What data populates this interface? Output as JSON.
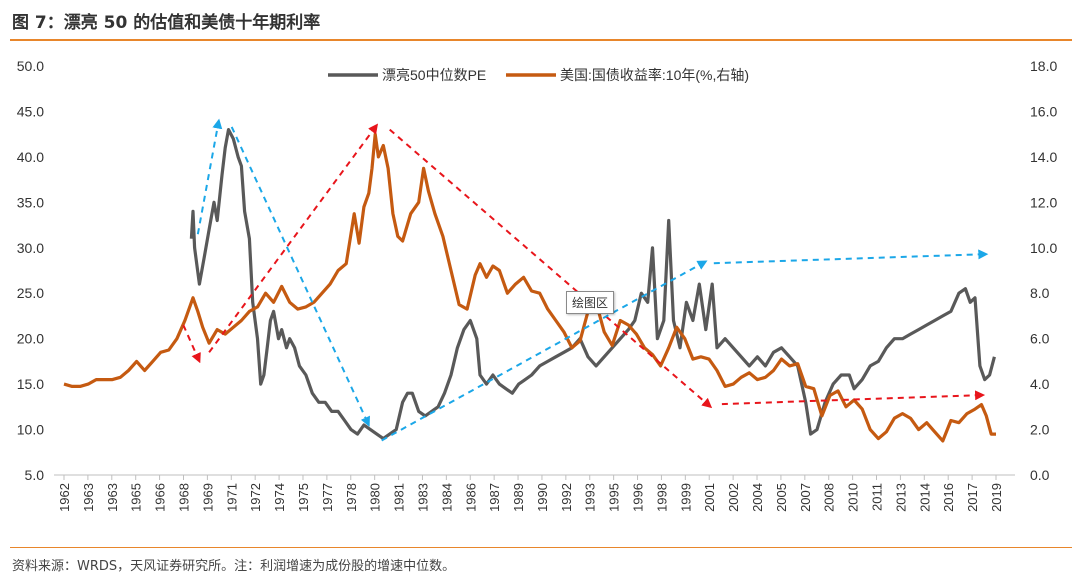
{
  "figure": {
    "title": "图 7：漂亮 50 的估值和美债十年期利率",
    "source_note": "资料来源：WRDS，天风证券研究所。注：利润增速为成份股的增速中位数。",
    "tooltip": "绘图区"
  },
  "colors": {
    "pe_line": "#595959",
    "yield_line": "#c55a11",
    "arrow_red": "#e8151b",
    "arrow_blue": "#1ba7e8",
    "rule": "#e8862b"
  },
  "chart_data": {
    "type": "line",
    "x_ticks": [
      "1962",
      "1963",
      "1963",
      "1965",
      "1966",
      "1968",
      "1969",
      "1971",
      "1972",
      "1974",
      "1975",
      "1977",
      "1978",
      "1980",
      "1981",
      "1983",
      "1984",
      "1986",
      "1987",
      "1989",
      "1990",
      "1992",
      "1993",
      "1995",
      "1996",
      "1998",
      "1999",
      "2001",
      "2002",
      "2004",
      "2005",
      "2007",
      "2008",
      "2010",
      "2011",
      "2013",
      "2014",
      "2016",
      "2017",
      "2019"
    ],
    "xlim": [
      1962,
      2019.8
    ],
    "y_left": {
      "range": [
        5,
        50
      ],
      "ticks": [
        "5.0",
        "10.0",
        "15.0",
        "20.0",
        "25.0",
        "30.0",
        "35.0",
        "40.0",
        "45.0",
        "50.0"
      ]
    },
    "y_right": {
      "range": [
        0,
        18
      ],
      "ticks": [
        "0.0",
        "2.0",
        "4.0",
        "6.0",
        "8.0",
        "10.0",
        "12.0",
        "14.0",
        "16.0",
        "18.0"
      ]
    },
    "legend": {
      "position": "top-center"
    },
    "series": [
      {
        "name": "漂亮50中位数PE",
        "axis": "left",
        "points": [
          [
            1969.9,
            31
          ],
          [
            1970.0,
            34
          ],
          [
            1970.1,
            30
          ],
          [
            1970.4,
            26
          ],
          [
            1970.7,
            29
          ],
          [
            1971.0,
            32
          ],
          [
            1971.3,
            35
          ],
          [
            1971.5,
            33
          ],
          [
            1971.8,
            38
          ],
          [
            1972.0,
            41
          ],
          [
            1972.2,
            43
          ],
          [
            1972.5,
            42
          ],
          [
            1972.8,
            40
          ],
          [
            1973.0,
            39
          ],
          [
            1973.2,
            34
          ],
          [
            1973.5,
            31
          ],
          [
            1973.7,
            24
          ],
          [
            1974.0,
            20
          ],
          [
            1974.2,
            15
          ],
          [
            1974.4,
            16
          ],
          [
            1974.6,
            19
          ],
          [
            1974.8,
            22
          ],
          [
            1975.0,
            23
          ],
          [
            1975.3,
            20
          ],
          [
            1975.5,
            21
          ],
          [
            1975.8,
            19
          ],
          [
            1976.0,
            20
          ],
          [
            1976.3,
            19
          ],
          [
            1976.6,
            17
          ],
          [
            1977.0,
            16
          ],
          [
            1977.4,
            14
          ],
          [
            1977.8,
            13
          ],
          [
            1978.2,
            13
          ],
          [
            1978.6,
            12
          ],
          [
            1979.0,
            12
          ],
          [
            1979.4,
            11
          ],
          [
            1979.8,
            10
          ],
          [
            1980.2,
            9.5
          ],
          [
            1980.6,
            10.5
          ],
          [
            1981.0,
            10
          ],
          [
            1981.4,
            9.5
          ],
          [
            1981.8,
            9
          ],
          [
            1982.2,
            9.5
          ],
          [
            1982.6,
            10
          ],
          [
            1983.0,
            13
          ],
          [
            1983.3,
            14
          ],
          [
            1983.6,
            14
          ],
          [
            1984.0,
            12
          ],
          [
            1984.4,
            11.5
          ],
          [
            1984.8,
            12
          ],
          [
            1985.2,
            12.5
          ],
          [
            1985.6,
            14
          ],
          [
            1986.0,
            16
          ],
          [
            1986.4,
            19
          ],
          [
            1986.8,
            21
          ],
          [
            1987.2,
            22
          ],
          [
            1987.6,
            20
          ],
          [
            1987.8,
            16
          ],
          [
            1988.2,
            15
          ],
          [
            1988.6,
            16
          ],
          [
            1989.0,
            15
          ],
          [
            1989.4,
            14.5
          ],
          [
            1989.8,
            14
          ],
          [
            1990.2,
            15
          ],
          [
            1990.6,
            15.5
          ],
          [
            1991.0,
            16
          ],
          [
            1991.5,
            17
          ],
          [
            1992.0,
            17.5
          ],
          [
            1992.5,
            18
          ],
          [
            1993.0,
            18.5
          ],
          [
            1993.5,
            19
          ],
          [
            1994.0,
            20
          ],
          [
            1994.5,
            18
          ],
          [
            1995.0,
            17
          ],
          [
            1995.5,
            18
          ],
          [
            1996.0,
            19
          ],
          [
            1996.5,
            20
          ],
          [
            1997.0,
            21
          ],
          [
            1997.4,
            22
          ],
          [
            1997.8,
            25
          ],
          [
            1998.2,
            24
          ],
          [
            1998.5,
            30
          ],
          [
            1998.8,
            20
          ],
          [
            1999.2,
            22
          ],
          [
            1999.5,
            33
          ],
          [
            1999.8,
            22
          ],
          [
            2000.2,
            19
          ],
          [
            2000.6,
            24
          ],
          [
            2001.0,
            22
          ],
          [
            2001.4,
            26
          ],
          [
            2001.8,
            21
          ],
          [
            2002.2,
            26
          ],
          [
            2002.5,
            19
          ],
          [
            2003.0,
            20
          ],
          [
            2003.5,
            19
          ],
          [
            2004.0,
            18
          ],
          [
            2004.5,
            17
          ],
          [
            2005.0,
            18
          ],
          [
            2005.5,
            17
          ],
          [
            2006.0,
            18.5
          ],
          [
            2006.5,
            19
          ],
          [
            2007.0,
            18
          ],
          [
            2007.5,
            17
          ],
          [
            2008.0,
            13
          ],
          [
            2008.3,
            9.5
          ],
          [
            2008.7,
            10
          ],
          [
            2009.2,
            13
          ],
          [
            2009.7,
            15
          ],
          [
            2010.2,
            16
          ],
          [
            2010.7,
            16
          ],
          [
            2011.0,
            14.5
          ],
          [
            2011.5,
            15.5
          ],
          [
            2012.0,
            17
          ],
          [
            2012.5,
            17.5
          ],
          [
            2013.0,
            19
          ],
          [
            2013.5,
            20
          ],
          [
            2014.0,
            20
          ],
          [
            2014.5,
            20.5
          ],
          [
            2015.0,
            21
          ],
          [
            2015.5,
            21.5
          ],
          [
            2016.0,
            22
          ],
          [
            2016.5,
            22.5
          ],
          [
            2017.0,
            23
          ],
          [
            2017.5,
            25
          ],
          [
            2017.9,
            25.5
          ],
          [
            2018.2,
            24
          ],
          [
            2018.5,
            24.5
          ],
          [
            2018.8,
            17
          ],
          [
            2019.1,
            15.5
          ],
          [
            2019.4,
            16
          ],
          [
            2019.7,
            18
          ]
        ]
      },
      {
        "name": "美国:国债收益率:10年(%,右轴)",
        "axis": "right",
        "points": [
          [
            1962.0,
            4.0
          ],
          [
            1962.5,
            3.9
          ],
          [
            1963.0,
            3.9
          ],
          [
            1963.5,
            4.0
          ],
          [
            1964.0,
            4.2
          ],
          [
            1964.5,
            4.2
          ],
          [
            1965.0,
            4.2
          ],
          [
            1965.5,
            4.3
          ],
          [
            1966.0,
            4.6
          ],
          [
            1966.5,
            5.0
          ],
          [
            1967.0,
            4.6
          ],
          [
            1967.5,
            5.0
          ],
          [
            1968.0,
            5.4
          ],
          [
            1968.5,
            5.5
          ],
          [
            1969.0,
            6.0
          ],
          [
            1969.5,
            6.8
          ],
          [
            1970.0,
            7.8
          ],
          [
            1970.3,
            7.2
          ],
          [
            1970.6,
            6.5
          ],
          [
            1971.0,
            5.8
          ],
          [
            1971.5,
            6.4
          ],
          [
            1972.0,
            6.2
          ],
          [
            1972.5,
            6.5
          ],
          [
            1973.0,
            6.8
          ],
          [
            1973.5,
            7.2
          ],
          [
            1974.0,
            7.4
          ],
          [
            1974.5,
            8.0
          ],
          [
            1975.0,
            7.6
          ],
          [
            1975.5,
            8.3
          ],
          [
            1976.0,
            7.6
          ],
          [
            1976.5,
            7.3
          ],
          [
            1977.0,
            7.4
          ],
          [
            1977.5,
            7.6
          ],
          [
            1978.0,
            8.0
          ],
          [
            1978.5,
            8.4
          ],
          [
            1979.0,
            9.0
          ],
          [
            1979.5,
            9.3
          ],
          [
            1980.0,
            11.5
          ],
          [
            1980.3,
            10.2
          ],
          [
            1980.6,
            11.8
          ],
          [
            1980.9,
            12.4
          ],
          [
            1981.1,
            13.5
          ],
          [
            1981.3,
            15.0
          ],
          [
            1981.5,
            14.0
          ],
          [
            1981.8,
            14.5
          ],
          [
            1982.1,
            13.5
          ],
          [
            1982.4,
            11.5
          ],
          [
            1982.7,
            10.5
          ],
          [
            1983.0,
            10.3
          ],
          [
            1983.5,
            11.5
          ],
          [
            1984.0,
            12.0
          ],
          [
            1984.3,
            13.5
          ],
          [
            1984.6,
            12.5
          ],
          [
            1985.0,
            11.5
          ],
          [
            1985.5,
            10.5
          ],
          [
            1986.0,
            9.0
          ],
          [
            1986.5,
            7.5
          ],
          [
            1987.0,
            7.3
          ],
          [
            1987.5,
            8.8
          ],
          [
            1987.8,
            9.3
          ],
          [
            1988.2,
            8.7
          ],
          [
            1988.6,
            9.2
          ],
          [
            1989.0,
            9.0
          ],
          [
            1989.5,
            8.0
          ],
          [
            1990.0,
            8.4
          ],
          [
            1990.5,
            8.7
          ],
          [
            1991.0,
            8.1
          ],
          [
            1991.5,
            8.0
          ],
          [
            1992.0,
            7.3
          ],
          [
            1992.5,
            6.8
          ],
          [
            1993.0,
            6.3
          ],
          [
            1993.5,
            5.6
          ],
          [
            1994.0,
            5.9
          ],
          [
            1994.5,
            7.2
          ],
          [
            1995.0,
            7.6
          ],
          [
            1995.5,
            6.3
          ],
          [
            1996.0,
            5.7
          ],
          [
            1996.5,
            6.8
          ],
          [
            1997.0,
            6.6
          ],
          [
            1997.5,
            6.2
          ],
          [
            1998.0,
            5.6
          ],
          [
            1998.5,
            5.3
          ],
          [
            1999.0,
            4.8
          ],
          [
            1999.5,
            5.6
          ],
          [
            2000.0,
            6.5
          ],
          [
            2000.5,
            6.0
          ],
          [
            2001.0,
            5.1
          ],
          [
            2001.5,
            5.2
          ],
          [
            2002.0,
            5.1
          ],
          [
            2002.5,
            4.6
          ],
          [
            2003.0,
            3.9
          ],
          [
            2003.5,
            4.0
          ],
          [
            2004.0,
            4.3
          ],
          [
            2004.5,
            4.5
          ],
          [
            2005.0,
            4.2
          ],
          [
            2005.5,
            4.3
          ],
          [
            2006.0,
            4.6
          ],
          [
            2006.5,
            5.1
          ],
          [
            2007.0,
            4.8
          ],
          [
            2007.5,
            4.9
          ],
          [
            2008.0,
            3.9
          ],
          [
            2008.5,
            3.8
          ],
          [
            2009.0,
            2.6
          ],
          [
            2009.5,
            3.5
          ],
          [
            2010.0,
            3.7
          ],
          [
            2010.5,
            3.0
          ],
          [
            2011.0,
            3.3
          ],
          [
            2011.5,
            2.9
          ],
          [
            2012.0,
            2.0
          ],
          [
            2012.5,
            1.6
          ],
          [
            2013.0,
            1.9
          ],
          [
            2013.5,
            2.5
          ],
          [
            2014.0,
            2.7
          ],
          [
            2014.5,
            2.5
          ],
          [
            2015.0,
            2.0
          ],
          [
            2015.5,
            2.3
          ],
          [
            2016.0,
            1.9
          ],
          [
            2016.5,
            1.5
          ],
          [
            2017.0,
            2.4
          ],
          [
            2017.5,
            2.3
          ],
          [
            2018.0,
            2.7
          ],
          [
            2018.5,
            2.9
          ],
          [
            2018.9,
            3.1
          ],
          [
            2019.2,
            2.6
          ],
          [
            2019.5,
            1.8
          ],
          [
            2019.8,
            1.8
          ]
        ]
      }
    ],
    "annotations": [
      {
        "color": "red",
        "axis": "left",
        "from": [
          1969.4,
          21.5
        ],
        "to": [
          1970.4,
          17.5
        ]
      },
      {
        "color": "red",
        "axis": "left",
        "from": [
          1971.0,
          18.5
        ],
        "to": [
          1981.4,
          43.5
        ]
      },
      {
        "color": "red",
        "axis": "left",
        "from": [
          1982.2,
          43.0
        ],
        "to": [
          2002.1,
          12.5
        ]
      },
      {
        "color": "red",
        "axis": "left",
        "from": [
          2002.8,
          12.8
        ],
        "to": [
          2019.0,
          13.8
        ]
      },
      {
        "color": "blue",
        "axis": "left",
        "from": [
          1970.3,
          31.5
        ],
        "to": [
          1971.6,
          44.0
        ]
      },
      {
        "color": "blue",
        "axis": "left",
        "from": [
          1972.4,
          43.3
        ],
        "to": [
          1980.9,
          10.5
        ]
      },
      {
        "color": "blue",
        "axis": "left",
        "from": [
          1981.7,
          8.8
        ],
        "to": [
          2001.8,
          28.5
        ]
      },
      {
        "color": "blue",
        "axis": "left",
        "from": [
          2002.3,
          28.3
        ],
        "to": [
          2019.2,
          29.3
        ]
      }
    ]
  }
}
